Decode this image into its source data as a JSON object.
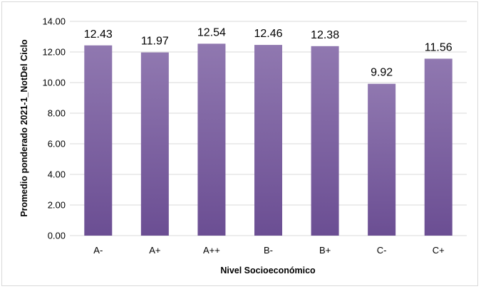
{
  "chart_data": {
    "type": "bar",
    "categories": [
      "A-",
      "A+",
      "A++",
      "B-",
      "B+",
      "C-",
      "C+"
    ],
    "values": [
      12.43,
      11.97,
      12.54,
      12.46,
      12.38,
      9.92,
      11.56
    ],
    "value_labels": [
      "12.43",
      "11.97",
      "12.54",
      "12.46",
      "12.38",
      "9.92",
      "11.56"
    ],
    "title": "",
    "xlabel": "Nivel Socioeconómico",
    "ylabel": "Promedio ponderado 2021-1_NotDel Ciclo",
    "ylim": [
      0,
      14
    ],
    "y_ticks": [
      "0.00",
      "2.00",
      "4.00",
      "6.00",
      "8.00",
      "10.00",
      "12.00",
      "14.00"
    ],
    "grid": true,
    "legend": "none",
    "colors": {
      "bar_top": "#9078b0",
      "bar_bottom": "#6b4e93",
      "grid": "#d9d9d9"
    }
  }
}
